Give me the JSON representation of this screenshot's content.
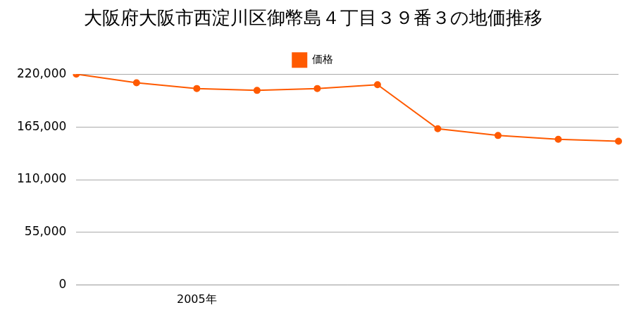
{
  "chart_data": {
    "type": "line",
    "title": "大阪府大阪市西淀川区御幣島４丁目３９番３の地価推移",
    "categories": [
      null,
      null,
      "2005年",
      null,
      null,
      null,
      null,
      null,
      null,
      null
    ],
    "series": [
      {
        "name": "価格",
        "color": "#ff5a00",
        "values": [
          220000,
          211000,
          205000,
          203000,
          205000,
          209000,
          163000,
          156000,
          152000,
          150000
        ]
      }
    ],
    "ylim": [
      0,
      220000
    ],
    "yticks": [
      {
        "value": 0,
        "label": "0"
      },
      {
        "value": 55000,
        "label": "55,000"
      },
      {
        "value": 110000,
        "label": "110,000"
      },
      {
        "value": 165000,
        "label": "165,000"
      },
      {
        "value": 220000,
        "label": "220,000"
      }
    ],
    "grid": true,
    "legend": "top",
    "marker": "circle",
    "line_style": "solid"
  }
}
